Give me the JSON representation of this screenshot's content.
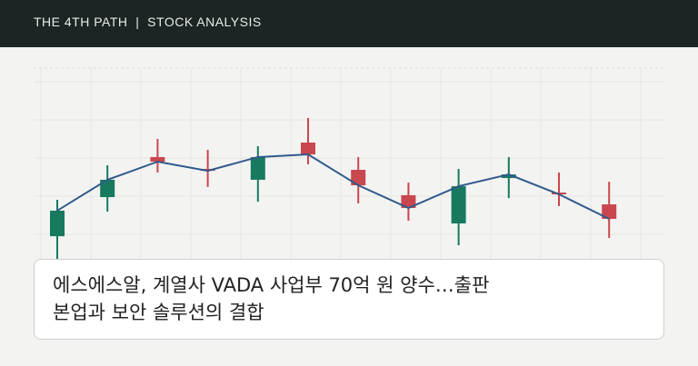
{
  "header": {
    "title": "THE 4TH PATH  |  STOCK ANALYSIS"
  },
  "chart_data": {
    "type": "candlestick",
    "categories": [
      null,
      null,
      null,
      null,
      null,
      null,
      null,
      null,
      null,
      null,
      null,
      null
    ],
    "open": [
      19.0,
      39.5,
      60.5,
      54.3,
      48.6,
      68.1,
      53.8,
      40.5,
      25.7,
      49.5,
      41.9,
      35.7
    ],
    "high": [
      38.1,
      56.2,
      70.0,
      64.3,
      66.2,
      81.0,
      60.5,
      47.1,
      54.3,
      60.5,
      52.4,
      47.6
    ],
    "low": [
      7.1,
      31.9,
      52.4,
      44.8,
      37.1,
      56.7,
      36.2,
      27.1,
      14.3,
      39.0,
      34.8,
      18.1
    ],
    "close": [
      32.4,
      48.6,
      58.1,
      53.3,
      60.5,
      61.9,
      45.7,
      33.8,
      45.2,
      51.4,
      41.0,
      28.1
    ],
    "up_color": "#177a5e",
    "down_color": "#c9474f",
    "line_color": "#2f5a8c",
    "ylim": [
      0,
      100
    ],
    "yticks": [
      20,
      40,
      60,
      80,
      100
    ],
    "grid": true
  },
  "headline": [
    "에스에스알, 계열사 VADA 사업부 70억 원 양수…출판",
    "본업과 보안 솔루션의 결합"
  ]
}
